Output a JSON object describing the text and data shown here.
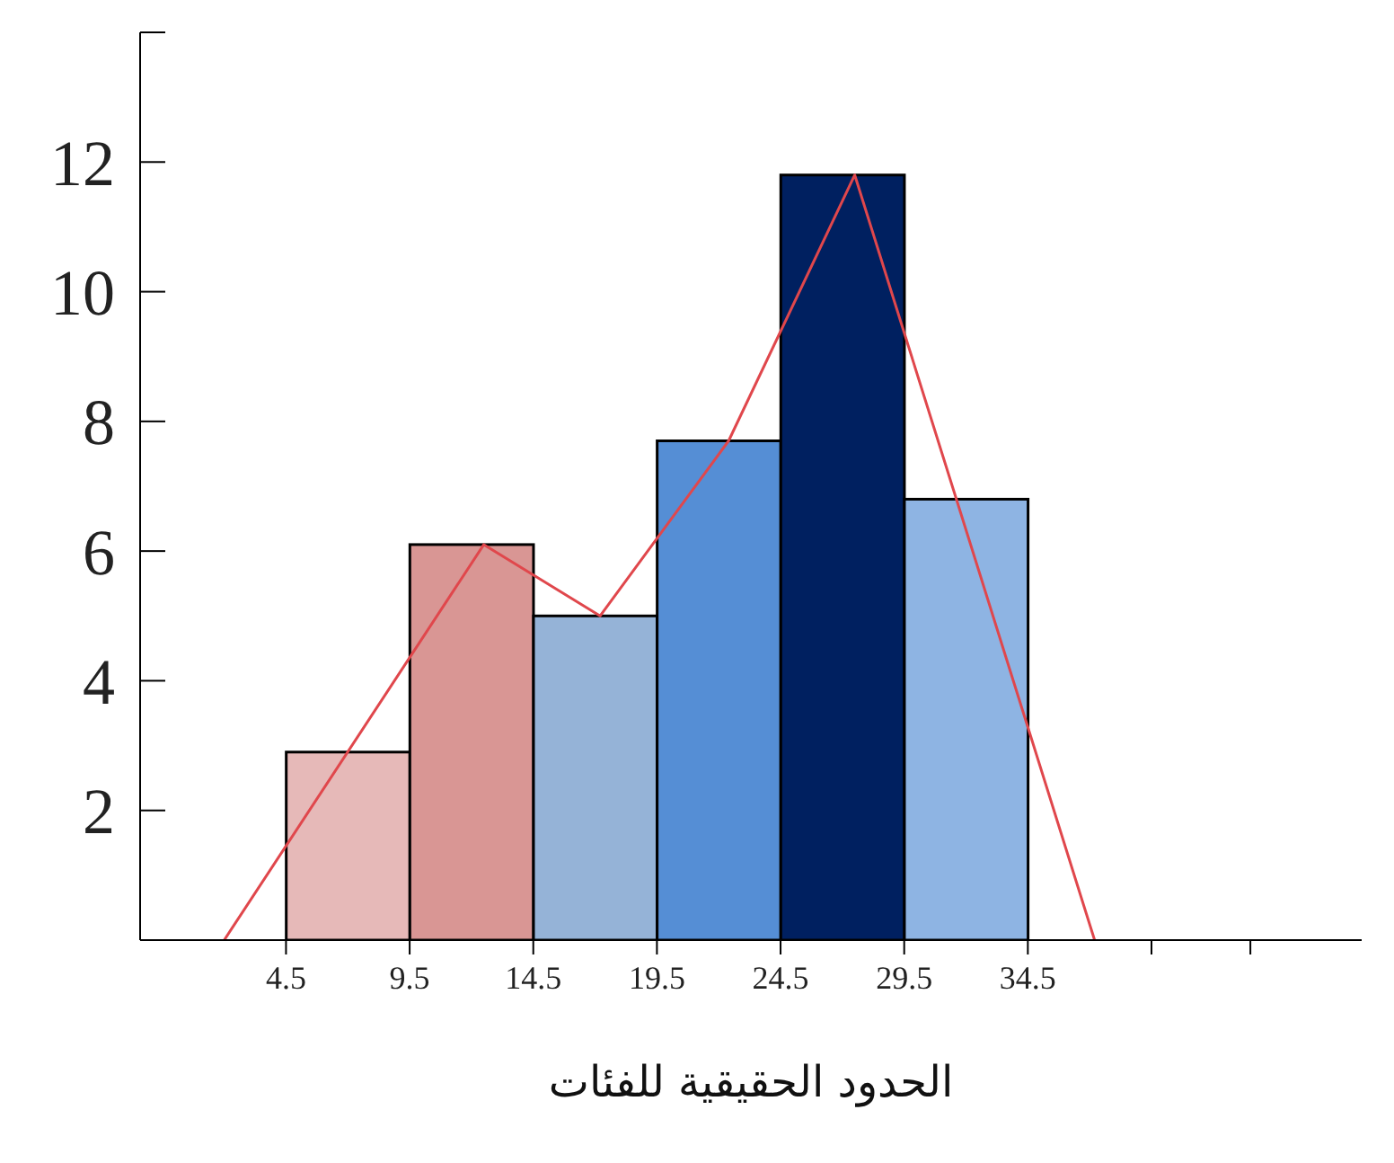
{
  "chart_data": {
    "type": "histogram",
    "xlabel": "الحدود الحقيقية للفئات",
    "bins": [
      4.5,
      9.5,
      14.5,
      19.5,
      24.5,
      29.5,
      34.5
    ],
    "values": [
      2.9,
      6.1,
      5,
      7.7,
      11.8,
      6.8
    ],
    "colors": [
      "#e6b9b8",
      "#d99694",
      "#95b3d7",
      "#558ed5",
      "#002060",
      "#8eb4e3"
    ],
    "series": [
      {
        "type": "line",
        "color": "#e0474c",
        "x": [
          2,
          12.5,
          17.2,
          22.4,
          27.5,
          37.2
        ],
        "values": [
          0,
          6.1,
          5,
          7.7,
          11.8,
          0
        ]
      }
    ],
    "xlim": [
      -1.4,
      48
    ],
    "xticks": [
      4.5,
      9.5,
      14.5,
      19.5,
      24.5,
      29.5,
      34.5,
      {
        "value": 39.5,
        "label": null
      },
      {
        "value": 43.5,
        "label": null
      }
    ],
    "ylim": [
      0,
      14
    ],
    "yticks": [
      2,
      4,
      6,
      8,
      10,
      12,
      {
        "value": 14,
        "label": null
      }
    ],
    "grid": false
  }
}
